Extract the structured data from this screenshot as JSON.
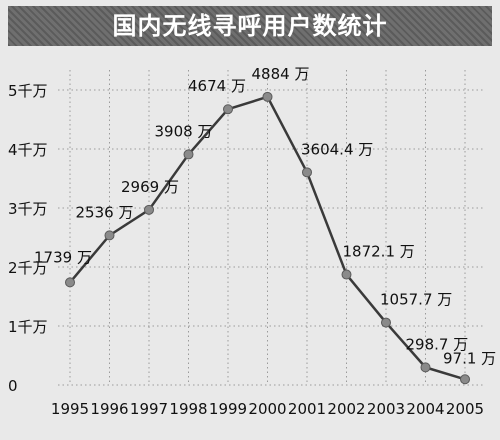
{
  "chart_data": {
    "type": "line",
    "title": "国内无线寻呼用户数统计",
    "x": [
      1995,
      1996,
      1997,
      1998,
      1999,
      2000,
      2001,
      2002,
      2003,
      2004,
      2005
    ],
    "x_tick_labels": [
      "1995",
      "1996",
      "1997",
      "1998",
      "1999",
      "2000",
      "2001",
      "2002",
      "2003",
      "2004",
      "2005"
    ],
    "values": [
      1739,
      2536,
      2969,
      3908,
      4674,
      4884,
      3604.4,
      1872.1,
      1057.7,
      298.7,
      97.1
    ],
    "data_labels": [
      "1739 万",
      "2536 万",
      "2969 万",
      "3908 万",
      "4674 万",
      "4884 万",
      "3604.4 万",
      "1872.1 万",
      "1057.7 万",
      "298.7 万",
      "97.1 万"
    ],
    "ylim": [
      0,
      5000
    ],
    "y_ticks": [
      0,
      1000,
      2000,
      3000,
      4000,
      5000
    ],
    "y_tick_labels": [
      "0",
      "1千万",
      "2千万",
      "3千万",
      "4千万",
      "5千万"
    ],
    "grid": true,
    "colors": {
      "line": "#3a3a3a",
      "marker": "#8a8a8a",
      "grid": "#9a9a9a",
      "header": "#6f6f6f",
      "background": "#e9e9e9"
    }
  }
}
